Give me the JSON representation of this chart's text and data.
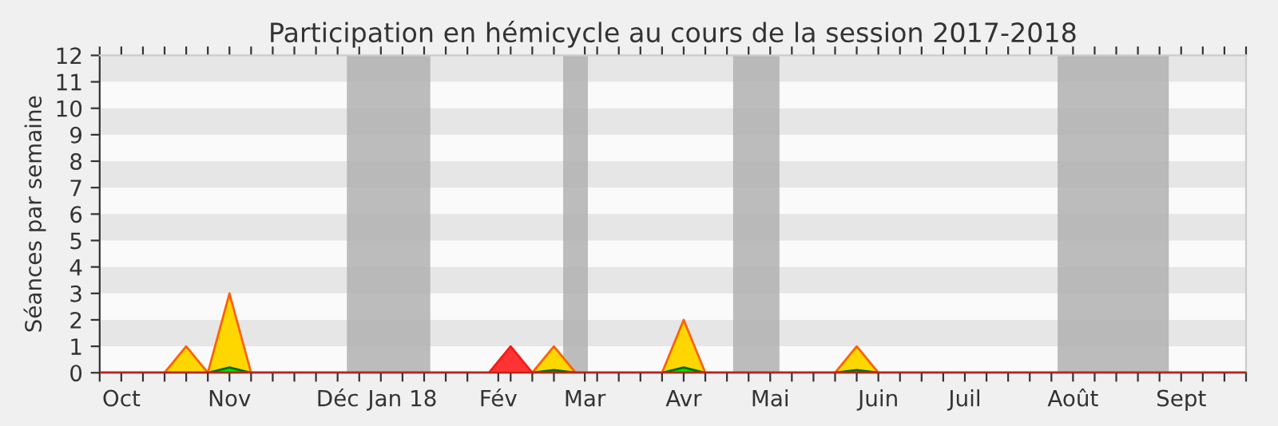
{
  "chart_data": {
    "type": "area",
    "title": "Participation en hémicycle au cours de la session 2017-2018",
    "ylabel": "Séances par semaine",
    "series": [
      {
        "color": "#ffd700",
        "values": [
          0,
          0,
          0,
          0,
          1,
          0,
          3,
          0,
          0,
          0,
          0,
          0,
          0,
          0,
          0,
          0,
          0,
          0,
          0,
          0,
          0,
          1,
          0,
          0,
          0,
          0,
          0,
          2,
          0,
          0,
          0,
          0,
          0,
          0,
          0,
          1,
          0,
          0,
          0,
          0,
          0,
          0,
          0,
          0,
          0,
          0,
          0,
          0,
          0,
          0,
          0,
          0,
          0,
          0
        ]
      },
      {
        "color": "#00e600",
        "values": [
          0,
          0,
          0,
          0,
          0,
          0,
          0.2,
          0,
          0,
          0,
          0,
          0,
          0,
          0,
          0,
          0,
          0,
          0,
          0,
          0,
          0,
          0.1,
          0,
          0,
          0,
          0,
          0,
          0.2,
          0,
          0,
          0,
          0,
          0,
          0,
          0,
          0.1,
          0,
          0,
          0,
          0,
          0,
          0,
          0,
          0,
          0,
          0,
          0,
          0,
          0,
          0,
          0,
          0,
          0,
          0
        ]
      },
      {
        "color": "#ff3333",
        "values": [
          0,
          0,
          0,
          0,
          0,
          0,
          0,
          0,
          0,
          0,
          0,
          0,
          0,
          0,
          0,
          0,
          0,
          0,
          0,
          1,
          0,
          0,
          0,
          0,
          0,
          0,
          0,
          0,
          0,
          0,
          0,
          0,
          0,
          0,
          0,
          0,
          0,
          0,
          0,
          0,
          0,
          0,
          0,
          0,
          0,
          0,
          0,
          0,
          0,
          0,
          0,
          0,
          0,
          0
        ]
      }
    ],
    "ylim": [
      0,
      12
    ],
    "yticks": [
      0,
      1,
      2,
      3,
      4,
      5,
      6,
      7,
      8,
      9,
      10,
      11,
      12
    ],
    "x": [
      "2017-09-25",
      "2017-10-02",
      "2017-10-09",
      "2017-10-16",
      "2017-10-23",
      "2017-10-30",
      "2017-11-06",
      "2017-11-13",
      "2017-11-20",
      "2017-11-27",
      "2017-12-04",
      "2017-12-11",
      "2017-12-18",
      "2017-12-25",
      "2018-01-01",
      "2018-01-08",
      "2018-01-15",
      "2018-01-22",
      "2018-01-29",
      "2018-02-05",
      "2018-02-12",
      "2018-02-19",
      "2018-02-26",
      "2018-03-05",
      "2018-03-12",
      "2018-03-19",
      "2018-03-26",
      "2018-04-02",
      "2018-04-09",
      "2018-04-16",
      "2018-04-23",
      "2018-04-30",
      "2018-05-07",
      "2018-05-14",
      "2018-05-21",
      "2018-05-28",
      "2018-06-04",
      "2018-06-11",
      "2018-06-18",
      "2018-06-25",
      "2018-07-02",
      "2018-07-09",
      "2018-07-16",
      "2018-07-23",
      "2018-07-30",
      "2018-08-06",
      "2018-08-13",
      "2018-08-20",
      "2018-08-27",
      "2018-09-03",
      "2018-09-10",
      "2018-09-17",
      "2018-09-24",
      "2018-10-01"
    ],
    "xlim": [
      "2017-09-25",
      "2018-10-01"
    ],
    "xticks": [
      {
        "value": "2017-09-25",
        "label": null
      },
      {
        "value": "2017-10-02",
        "label": "Oct"
      },
      {
        "value": "2017-10-09",
        "label": null
      },
      {
        "value": "2017-10-16",
        "label": null
      },
      {
        "value": "2017-10-23",
        "label": null
      },
      {
        "value": "2017-10-30",
        "label": null
      },
      {
        "value": "2017-11-06",
        "label": "Nov"
      },
      {
        "value": "2017-11-13",
        "label": null
      },
      {
        "value": "2017-11-20",
        "label": null
      },
      {
        "value": "2017-11-27",
        "label": null
      },
      {
        "value": "2017-12-04",
        "label": null
      },
      {
        "value": "2017-12-11",
        "label": "Déc"
      },
      {
        "value": "2017-12-18",
        "label": null
      },
      {
        "value": "2017-12-25",
        "label": null
      },
      {
        "value": "2018-01-01",
        "label": "Jan 18"
      },
      {
        "value": "2018-01-08",
        "label": null
      },
      {
        "value": "2018-01-15",
        "label": null
      },
      {
        "value": "2018-01-22",
        "label": null
      },
      {
        "value": "2018-02-01",
        "label": "Fév"
      },
      {
        "value": "2018-02-05",
        "label": null
      },
      {
        "value": "2018-02-12",
        "label": null
      },
      {
        "value": "2018-02-19",
        "label": null
      },
      {
        "value": "2018-03-01",
        "label": "Mar"
      },
      {
        "value": "2018-03-05",
        "label": null
      },
      {
        "value": "2018-03-12",
        "label": null
      },
      {
        "value": "2018-03-19",
        "label": null
      },
      {
        "value": "2018-03-26",
        "label": null
      },
      {
        "value": "2018-04-02",
        "label": "Avr"
      },
      {
        "value": "2018-04-09",
        "label": null
      },
      {
        "value": "2018-04-16",
        "label": null
      },
      {
        "value": "2018-04-23",
        "label": null
      },
      {
        "value": "2018-04-30",
        "label": "Mai"
      },
      {
        "value": "2018-05-07",
        "label": null
      },
      {
        "value": "2018-05-14",
        "label": null
      },
      {
        "value": "2018-05-21",
        "label": null
      },
      {
        "value": "2018-05-28",
        "label": null
      },
      {
        "value": "2018-06-04",
        "label": "Juin"
      },
      {
        "value": "2018-06-11",
        "label": null
      },
      {
        "value": "2018-06-18",
        "label": null
      },
      {
        "value": "2018-06-25",
        "label": null
      },
      {
        "value": "2018-07-02",
        "label": "Juil"
      },
      {
        "value": "2018-07-09",
        "label": null
      },
      {
        "value": "2018-07-16",
        "label": null
      },
      {
        "value": "2018-07-23",
        "label": null
      },
      {
        "value": "2018-07-30",
        "label": null
      },
      {
        "value": "2018-08-06",
        "label": "Août"
      },
      {
        "value": "2018-08-13",
        "label": null
      },
      {
        "value": "2018-08-20",
        "label": null
      },
      {
        "value": "2018-08-27",
        "label": null
      },
      {
        "value": "2018-09-03",
        "label": null
      },
      {
        "value": "2018-09-10",
        "label": "Sept"
      },
      {
        "value": "2018-09-17",
        "label": null
      },
      {
        "value": "2018-09-24",
        "label": null
      },
      {
        "value": "2018-10-01",
        "label": null
      }
    ],
    "bands": [
      {
        "axis": "x",
        "from": "2017-12-14",
        "to": "2018-01-10",
        "color": "#b0b0b0"
      },
      {
        "axis": "x",
        "from": "2018-02-22",
        "to": "2018-03-02",
        "color": "#b0b0b0"
      },
      {
        "axis": "x",
        "from": "2018-04-18",
        "to": "2018-05-03",
        "color": "#b0b0b0"
      },
      {
        "axis": "x",
        "from": "2018-08-01",
        "to": "2018-09-06",
        "color": "#b0b0b0"
      }
    ],
    "legend": false
  }
}
